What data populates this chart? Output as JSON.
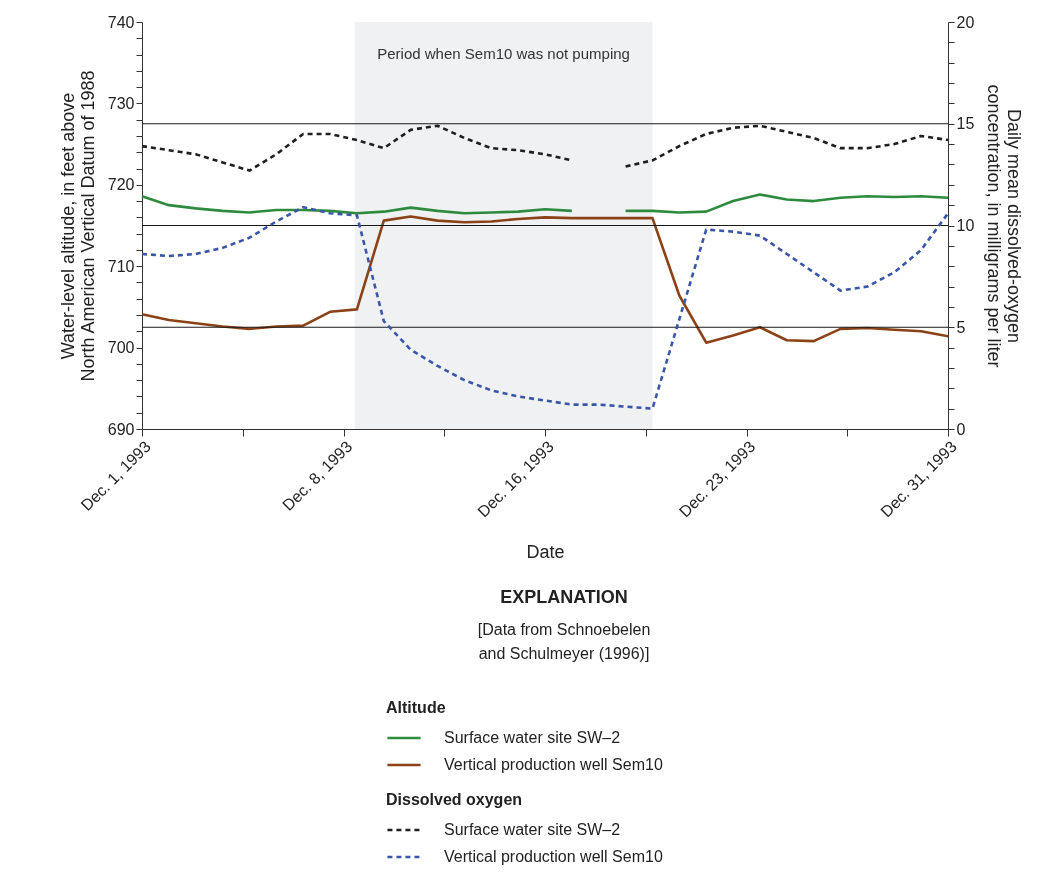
{
  "chart_data": {
    "type": "line",
    "xlabel": "Date",
    "ylabel": "Water-level altitude, in feet above North American Vertical Datum of 1988",
    "y2label": "Daily mean dissolved-oxygen concentration, in milligrams per liter",
    "legend_title": "EXPLANATION",
    "legend": "bottom",
    "annotations": [
      "[Data from Schnoebelen and Schulmeyer (1996)]",
      "Altitude",
      "Dissolved oxygen"
    ],
    "x": [
      "1993-12-01",
      "1993-12-02",
      "1993-12-03",
      "1993-12-04",
      "1993-12-05",
      "1993-12-06",
      "1993-12-07",
      "1993-12-08",
      "1993-12-09",
      "1993-12-10",
      "1993-12-11",
      "1993-12-12",
      "1993-12-13",
      "1993-12-14",
      "1993-12-15",
      "1993-12-16",
      "1993-12-17",
      "1993-12-18",
      "1993-12-19",
      "1993-12-20",
      "1993-12-21",
      "1993-12-22",
      "1993-12-23",
      "1993-12-24",
      "1993-12-25",
      "1993-12-26",
      "1993-12-27",
      "1993-12-28",
      "1993-12-29",
      "1993-12-30",
      "1993-12-31"
    ],
    "series": [
      {
        "name": "Surface water site SW–2",
        "color": "#2e8b3e",
        "line_style": "solid",
        "axis": "y",
        "values": [
          718.6,
          717.5,
          717.1,
          716.8,
          716.6,
          716.9,
          716.9,
          716.8,
          716.5,
          716.7,
          717.2,
          716.8,
          716.5,
          716.6,
          716.7,
          717.0,
          716.8,
          null,
          716.8,
          716.8,
          716.6,
          716.7,
          718.0,
          718.8,
          718.2,
          718.0,
          718.4,
          718.6,
          718.5,
          718.6,
          718.4
        ]
      },
      {
        "name": "Vertical production well Sem10",
        "color": "#8b4216",
        "line_style": "solid",
        "axis": "y",
        "values": [
          704.1,
          703.4,
          703.0,
          702.6,
          702.3,
          702.6,
          702.7,
          704.4,
          704.7,
          715.6,
          716.1,
          715.6,
          715.4,
          715.5,
          715.8,
          716.0,
          715.9,
          715.9,
          715.9,
          715.9,
          706.4,
          700.6,
          701.5,
          702.5,
          700.9,
          700.8,
          702.3,
          702.4,
          702.2,
          702.0,
          701.4
        ]
      },
      {
        "name": "Surface water site SW–2",
        "color": "#1f1f1f",
        "line_style": "dashed",
        "axis": "y2",
        "values": [
          13.9,
          13.7,
          13.5,
          13.1,
          12.7,
          13.5,
          14.5,
          14.5,
          14.2,
          13.8,
          14.7,
          14.9,
          14.3,
          13.8,
          13.7,
          13.5,
          13.2,
          null,
          12.9,
          13.2,
          13.9,
          14.5,
          14.8,
          14.9,
          14.6,
          14.3,
          13.8,
          13.8,
          14.0,
          14.4,
          14.2
        ]
      },
      {
        "name": "Vertical production well Sem10",
        "color": "#3a56a8",
        "line_style": "dashed",
        "axis": "y2",
        "values": [
          8.6,
          8.5,
          8.6,
          8.9,
          9.4,
          10.2,
          10.9,
          10.6,
          10.5,
          5.3,
          3.9,
          3.1,
          2.4,
          1.9,
          1.6,
          1.4,
          1.2,
          1.2,
          1.1,
          1.0,
          5.4,
          9.8,
          9.7,
          9.5,
          8.6,
          7.7,
          6.8,
          7.0,
          7.7,
          8.8,
          10.6
        ]
      }
    ],
    "xlim": [
      "1993-12-01",
      "1993-12-31"
    ],
    "xticks": [
      {
        "value": "1993-12-01",
        "label": "Dec. 1, 1993"
      },
      {
        "value": "1993-12-04T18:00",
        "label": null
      },
      {
        "value": "1993-12-08T12:00",
        "label": "Dec. 8, 1993"
      },
      {
        "value": "1993-12-12T06:00",
        "label": null
      },
      {
        "value": "1993-12-16",
        "label": "Dec. 16, 1993"
      },
      {
        "value": "1993-12-19T18:00",
        "label": null
      },
      {
        "value": "1993-12-23T12:00",
        "label": "Dec. 23, 1993"
      },
      {
        "value": "1993-12-27T06:00",
        "label": null
      },
      {
        "value": "1993-12-31",
        "label": "Dec. 31, 1993"
      }
    ],
    "ylim": [
      690,
      740
    ],
    "yticks": [
      690,
      {
        "value": 692,
        "label": null
      },
      {
        "value": 694,
        "label": null
      },
      {
        "value": 696,
        "label": null
      },
      {
        "value": 698,
        "label": null
      },
      700,
      {
        "value": 702,
        "label": null
      },
      {
        "value": 704,
        "label": null
      },
      {
        "value": 706,
        "label": null
      },
      {
        "value": 708,
        "label": null
      },
      710,
      {
        "value": 712,
        "label": null
      },
      {
        "value": 714,
        "label": null
      },
      {
        "value": 716,
        "label": null
      },
      {
        "value": 718,
        "label": null
      },
      720,
      {
        "value": 722,
        "label": null
      },
      {
        "value": 724,
        "label": null
      },
      {
        "value": 726,
        "label": null
      },
      {
        "value": 728,
        "label": null
      },
      730,
      {
        "value": 732,
        "label": null
      },
      {
        "value": 734,
        "label": null
      },
      {
        "value": 736,
        "label": null
      },
      {
        "value": 738,
        "label": null
      },
      740
    ],
    "y2lim": [
      0,
      20
    ],
    "y2ticks": [
      0,
      {
        "value": 1,
        "label": null
      },
      {
        "value": 2,
        "label": null
      },
      {
        "value": 3,
        "label": null
      },
      {
        "value": 4,
        "label": null
      },
      5,
      {
        "value": 6,
        "label": null
      },
      {
        "value": 7,
        "label": null
      },
      {
        "value": 8,
        "label": null
      },
      {
        "value": 9,
        "label": null
      },
      10,
      {
        "value": 11,
        "label": null
      },
      {
        "value": 12,
        "label": null
      },
      {
        "value": 13,
        "label": null
      },
      {
        "value": 14,
        "label": null
      },
      15,
      {
        "value": 16,
        "label": null
      },
      {
        "value": 17,
        "label": null
      },
      {
        "value": 18,
        "label": null
      },
      {
        "value": 19,
        "label": null
      },
      20
    ],
    "ref_lines": [
      {
        "axis": "y2",
        "value": 5,
        "color": "#1a1a1a"
      },
      {
        "axis": "y2",
        "value": 10,
        "color": "#1a1a1a"
      },
      {
        "axis": "y2",
        "value": 15,
        "color": "#1a1a1a"
      }
    ],
    "bands": [
      {
        "axis": "x",
        "from": "1993-12-08T22:00",
        "to": "1993-12-20",
        "label": "Period when Sem10 was not pumping",
        "color": "#f0f1f3"
      }
    ]
  }
}
